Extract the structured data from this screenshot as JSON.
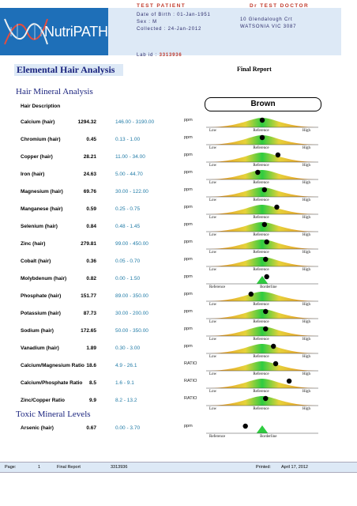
{
  "header": {
    "brand": "NutriPATH",
    "patient_label": "TEST PATIENT",
    "dob": "Date of Birth : 01-Jan-1951",
    "sex": "Sex : M",
    "collected": "Collected : 24-Jan-2012",
    "doctor_label": "Dr TEST DOCTOR",
    "address_line1": "10 Glendalough Crt",
    "address_line2": "WATSONIA VIC 3087",
    "lab_id_label": "Lab id :",
    "lab_id": "3313936"
  },
  "report": {
    "title": "Elemental Hair Analysis",
    "status": "Final Report",
    "section_minerals": "Hair Mineral Analysis",
    "section_toxic": "Toxic Mineral Levels",
    "hair_description_label": "Hair Description",
    "hair_colour": "Brown"
  },
  "gauge_labels": {
    "low": "Low",
    "reference": "Reference",
    "high": "High",
    "borderline": "Borderline"
  },
  "colors": {
    "gauge_low": "#e67e22",
    "gauge_mid": "#2ecc40",
    "marker": "#000000",
    "header_box": "#dde9f6",
    "accent_red": "#c0392b",
    "range_text": "#1f7aa6"
  },
  "minerals": [
    {
      "name": "Calcium (hair)",
      "value": "1294.32",
      "range": "146.00 - 3190.00",
      "unit": "ppm",
      "gauge": "three",
      "marker": 0.5
    },
    {
      "name": "Chromium (hair)",
      "value": "0.45",
      "range": "0.13 - 1.00",
      "unit": "ppm",
      "gauge": "three",
      "marker": 0.5
    },
    {
      "name": "Copper (hair)",
      "value": "28.21",
      "range": "11.00 - 34.00",
      "unit": "ppm",
      "gauge": "three",
      "marker": 0.64
    },
    {
      "name": "Iron (hair)",
      "value": "24.63",
      "range": "5.00 - 44.70",
      "unit": "ppm",
      "gauge": "three",
      "marker": 0.46
    },
    {
      "name": "Magnesium (hair)",
      "value": "69.76",
      "range": "30.00 - 122.00",
      "unit": "ppm",
      "gauge": "three",
      "marker": 0.52
    },
    {
      "name": "Manganese (hair)",
      "value": "0.59",
      "range": "0.25 - 0.75",
      "unit": "ppm",
      "gauge": "three",
      "marker": 0.63
    },
    {
      "name": "Selenium (hair)",
      "value": "0.84",
      "range": "0.48 - 1.45",
      "unit": "ppm",
      "gauge": "three",
      "marker": 0.52
    },
    {
      "name": "Zinc (hair)",
      "value": "279.81",
      "range": "99.00 - 450.00",
      "unit": "ppm",
      "gauge": "three",
      "marker": 0.54
    },
    {
      "name": "Cobalt (hair)",
      "value": "0.36",
      "range": "0.05 - 0.70",
      "unit": "ppm",
      "gauge": "three",
      "marker": 0.53
    },
    {
      "name": "Molybdenum (hair)",
      "value": "0.82",
      "range": "0.00 - 1.50",
      "unit": "ppm",
      "gauge": "two",
      "marker": 0.54
    },
    {
      "name": "Phosphate (hair)",
      "value": "151.77",
      "range": "89.00 - 350.00",
      "unit": "ppm",
      "gauge": "three",
      "marker": 0.4
    },
    {
      "name": "Potassium (hair)",
      "value": "87.73",
      "range": "30.00 - 200.00",
      "unit": "ppm",
      "gauge": "three",
      "marker": 0.53
    },
    {
      "name": "Sodium (hair)",
      "value": "172.65",
      "range": "50.00 - 350.00",
      "unit": "ppm",
      "gauge": "three",
      "marker": 0.53
    },
    {
      "name": "Vanadium (hair)",
      "value": "1.89",
      "range": "0.30 - 3.00",
      "unit": "ppm",
      "gauge": "three",
      "marker": 0.6
    },
    {
      "name": "Calcium/Magnesium Ratio",
      "value": "18.6",
      "range": "4.9 - 26.1",
      "unit": "RATIO",
      "gauge": "three",
      "marker": 0.62
    },
    {
      "name": "Calcium/Phosphate Ratio",
      "value": "8.5",
      "range": "1.6 - 9.1",
      "unit": "RATIO",
      "gauge": "three",
      "marker": 0.74
    },
    {
      "name": "Zinc/Copper Ratio",
      "value": "9.9",
      "range": "8.2 - 13.2",
      "unit": "RATIO",
      "gauge": "three",
      "marker": 0.53
    }
  ],
  "toxic": [
    {
      "name": "Arsenic (hair)",
      "value": "0.67",
      "range": "0.00 - 3.70",
      "unit": "ppm",
      "gauge": "two",
      "marker": 0.35
    }
  ],
  "footer": {
    "page_label": "Page:",
    "page_number": "1",
    "report_type": "Final Report",
    "lab_id": "3313936",
    "printed_label": "Printed:",
    "printed_date": "April 17, 2012"
  }
}
